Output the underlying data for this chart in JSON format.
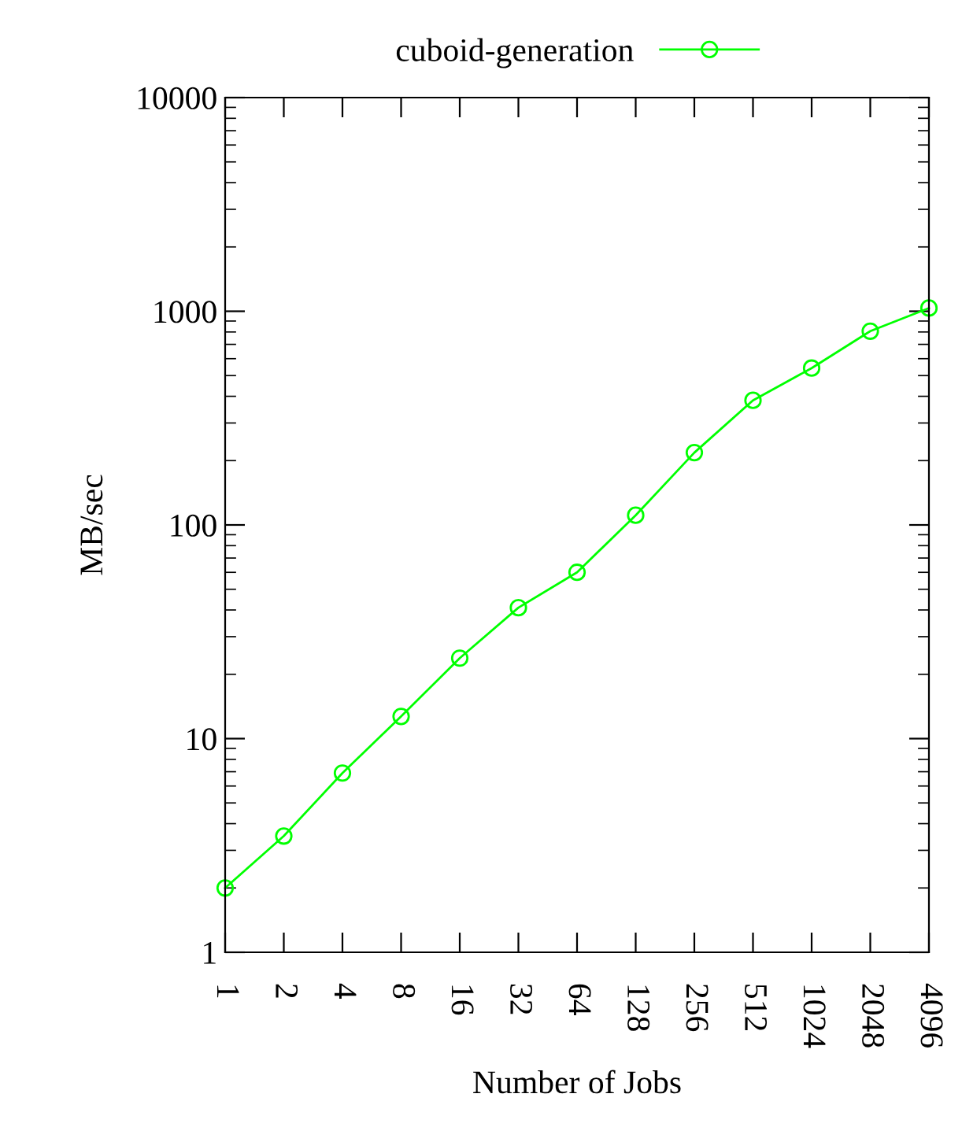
{
  "chart_data": {
    "type": "line",
    "xlabel": "Number of Jobs",
    "ylabel": "MB/sec",
    "categories": [
      "1",
      "2",
      "4",
      "8",
      "16",
      "32",
      "64",
      "128",
      "256",
      "512",
      "1024",
      "2048",
      "4096"
    ],
    "series": [
      {
        "name": "cuboid-generation",
        "color": "#00ff00",
        "values": [
          2.0,
          3.5,
          6.9,
          12.7,
          23.8,
          41,
          60,
          111,
          218,
          383,
          542,
          807,
          1035
        ]
      }
    ],
    "log": "y",
    "ylim": [
      1,
      10000
    ],
    "yticks": [
      1,
      10,
      100,
      1000,
      10000
    ],
    "marker": "circle",
    "line_style": "solid",
    "legend": "top",
    "grid": false
  }
}
